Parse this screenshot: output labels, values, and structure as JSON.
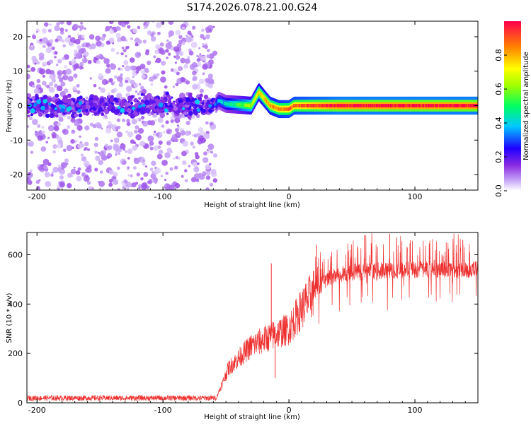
{
  "chart_data": [
    {
      "type": "heatmap",
      "title": "S174.2026.078.21.00.G24",
      "xlabel": "Height of straight line (km)",
      "ylabel": "Frequency (Hz)",
      "xlim": [
        -208,
        150
      ],
      "ylim": [
        -24.5,
        24.5
      ],
      "xticks": [
        -200,
        -100,
        0,
        100
      ],
      "yticks": [
        -20,
        -10,
        0,
        10,
        20
      ],
      "colorbar": {
        "label": "Normalized spectral amplitude",
        "range": [
          0,
          1
        ],
        "ticks": [
          0.0,
          0.2,
          0.4,
          0.6,
          0.8
        ],
        "tick_labels": [
          "0.0",
          "0.2",
          "0.4",
          "0.6",
          "0.8"
        ],
        "colors": [
          "#ffffff",
          "#e0d0f8",
          "#9a50f0",
          "#6000e0",
          "#0000ff",
          "#00c8ff",
          "#00ff80",
          "#80ff00",
          "#ffff00",
          "#ff8000",
          "#ff0050"
        ]
      },
      "noise_region_x": [
        -208,
        -58
      ],
      "noise_band_hz": [
        -4,
        4
      ],
      "carrier_track": [
        {
          "x": -208,
          "y": 0
        },
        {
          "x": -58,
          "y": 0.5
        },
        {
          "x": -56,
          "y": 1.5
        },
        {
          "x": -50,
          "y": 0.5
        },
        {
          "x": -30,
          "y": 0
        },
        {
          "x": -24,
          "y": 4
        },
        {
          "x": -15,
          "y": 0
        },
        {
          "x": -8,
          "y": -1
        },
        {
          "x": 0,
          "y": -1
        },
        {
          "x": 4,
          "y": 0
        },
        {
          "x": 150,
          "y": 0
        }
      ],
      "track_peak_amplitude": [
        {
          "x": -58,
          "a": 0.3
        },
        {
          "x": -20,
          "a": 0.75
        },
        {
          "x": 0,
          "a": 0.85
        },
        {
          "x": 40,
          "a": 0.95
        },
        {
          "x": 150,
          "a": 0.95
        }
      ]
    },
    {
      "type": "line",
      "xlabel": "Height of straight line (km)",
      "ylabel": "SNR (10 * v/v)",
      "xlim": [
        -208,
        150
      ],
      "ylim": [
        0,
        690
      ],
      "xticks": [
        -200,
        -100,
        0,
        100
      ],
      "yticks": [
        0,
        200,
        400,
        600
      ],
      "series": [
        {
          "name": "SNR",
          "color": "#ee3030",
          "points": [
            {
              "x": -208,
              "y": 15
            },
            {
              "x": -58,
              "y": 15
            },
            {
              "x": -48,
              "y": 140
            },
            {
              "x": -30,
              "y": 230
            },
            {
              "x": -14,
              "y": 270
            },
            {
              "x": 0,
              "y": 300
            },
            {
              "x": 10,
              "y": 380
            },
            {
              "x": 20,
              "y": 450
            },
            {
              "x": 30,
              "y": 500
            },
            {
              "x": 50,
              "y": 530
            },
            {
              "x": 100,
              "y": 540
            },
            {
              "x": 150,
              "y": 540
            }
          ],
          "spikes": [
            {
              "x": -14,
              "y": 565
            },
            {
              "x": -11,
              "y": 100
            },
            {
              "x": 22,
              "y": 640
            },
            {
              "x": 60,
              "y": 680
            },
            {
              "x": 80,
              "y": 685
            },
            {
              "x": 138,
              "y": 660
            }
          ]
        }
      ]
    }
  ]
}
